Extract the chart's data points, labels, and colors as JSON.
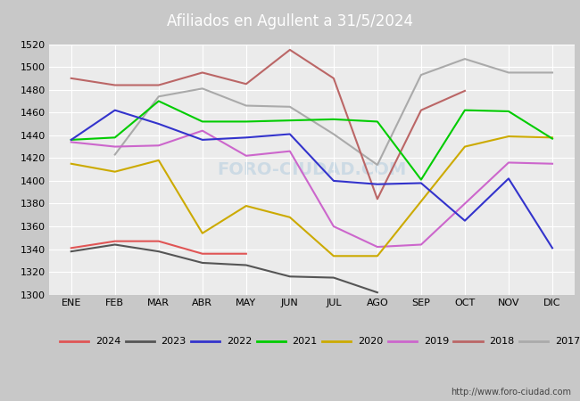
{
  "title": "Afiliados en Agullent a 31/5/2024",
  "ylim": [
    1300,
    1520
  ],
  "yticks": [
    1300,
    1320,
    1340,
    1360,
    1380,
    1400,
    1420,
    1440,
    1460,
    1480,
    1500,
    1520
  ],
  "months": [
    "ENE",
    "FEB",
    "MAR",
    "ABR",
    "MAY",
    "JUN",
    "JUL",
    "AGO",
    "SEP",
    "OCT",
    "NOV",
    "DIC"
  ],
  "url": "http://www.foro-ciudad.com",
  "series": {
    "2024": {
      "color": "#e05555",
      "data": [
        1341,
        1347,
        1347,
        1336,
        1336,
        null,
        null,
        null,
        null,
        null,
        null,
        null
      ]
    },
    "2023": {
      "color": "#555555",
      "data": [
        1338,
        1344,
        1338,
        1328,
        1326,
        1316,
        1315,
        1302,
        null,
        null,
        null,
        null
      ]
    },
    "2022": {
      "color": "#3333cc",
      "data": [
        1436,
        1462,
        1450,
        1436,
        1438,
        1441,
        1400,
        1397,
        1398,
        1365,
        1402,
        1341
      ]
    },
    "2021": {
      "color": "#00cc00",
      "data": [
        1436,
        1438,
        1470,
        1452,
        1452,
        1453,
        1454,
        1452,
        1401,
        1462,
        1461,
        1437
      ]
    },
    "2020": {
      "color": "#ccaa00",
      "data": [
        1415,
        1408,
        1418,
        1354,
        1378,
        1368,
        1334,
        1334,
        null,
        1430,
        1439,
        1438
      ]
    },
    "2019": {
      "color": "#cc66cc",
      "data": [
        1434,
        1430,
        1431,
        1444,
        1422,
        1426,
        1360,
        1342,
        1344,
        null,
        1416,
        1415
      ]
    },
    "2018": {
      "color": "#bb6666",
      "data": [
        1490,
        1484,
        1484,
        1495,
        1485,
        1515,
        1490,
        1384,
        1462,
        1479,
        null,
        null
      ]
    },
    "2017": {
      "color": "#aaaaaa",
      "data": [
        null,
        1423,
        1474,
        1481,
        1466,
        1465,
        1441,
        1414,
        1493,
        1507,
        1495,
        1495
      ]
    }
  },
  "series_order": [
    "2017",
    "2018",
    "2019",
    "2020",
    "2021",
    "2022",
    "2023",
    "2024"
  ],
  "legend_items": [
    [
      "2024",
      "#e05555"
    ],
    [
      "2023",
      "#555555"
    ],
    [
      "2022",
      "#3333cc"
    ],
    [
      "2021",
      "#00cc00"
    ],
    [
      "2020",
      "#ccaa00"
    ],
    [
      "2019",
      "#cc66cc"
    ],
    [
      "2018",
      "#bb6666"
    ],
    [
      "2017",
      "#aaaaaa"
    ]
  ]
}
